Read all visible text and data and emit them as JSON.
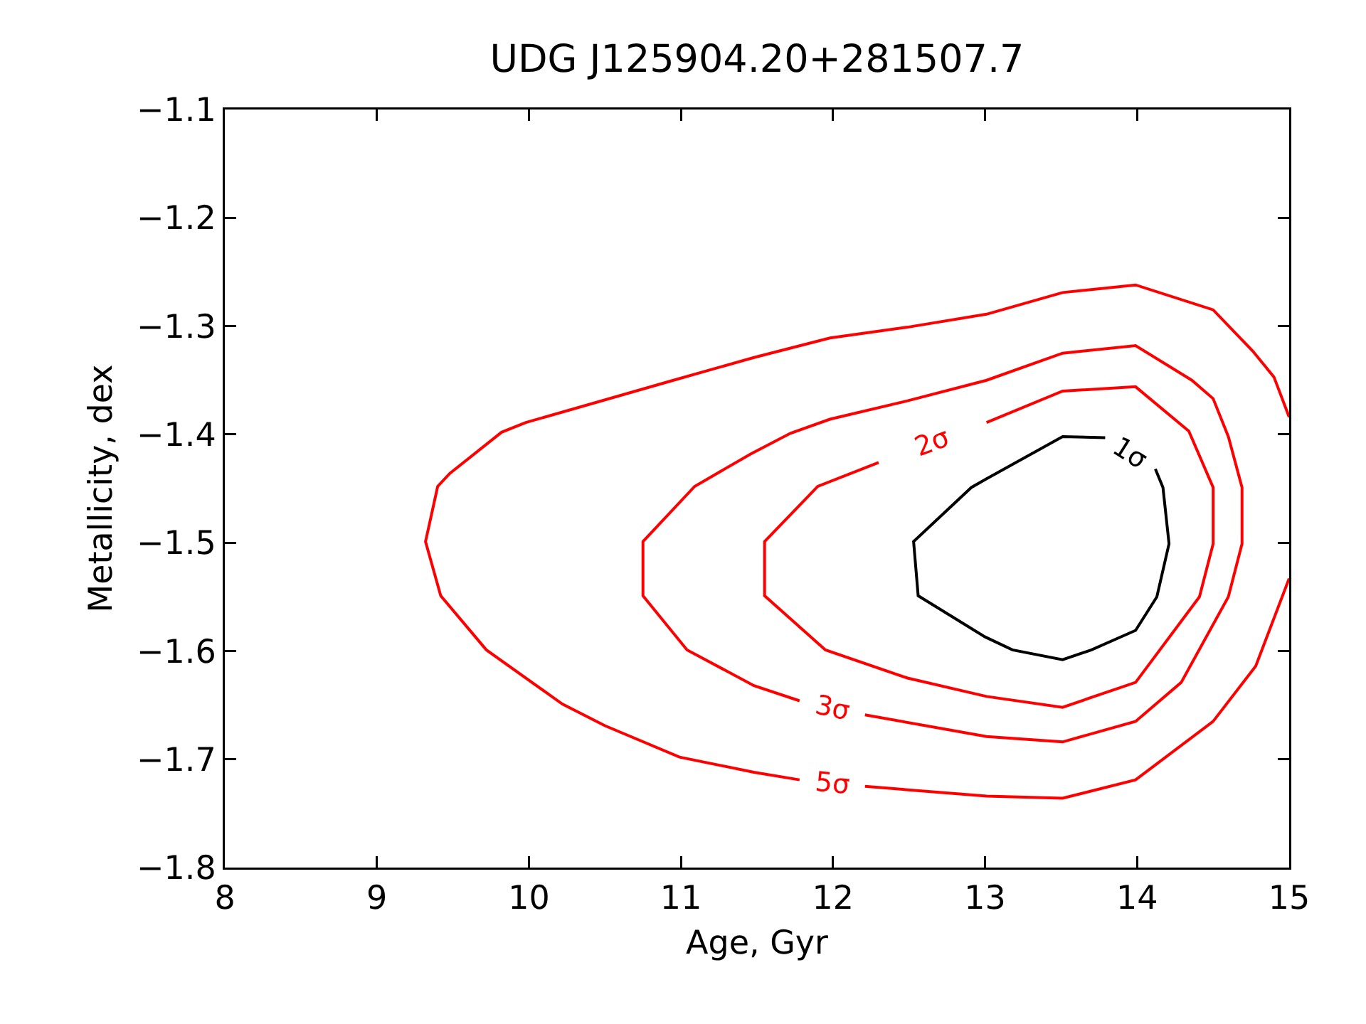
{
  "chart_data": {
    "type": "line",
    "title": "UDG J125904.20+281507.7",
    "xlabel": "Age, Gyr",
    "ylabel": "Metallicity, dex",
    "xlim": [
      8,
      15
    ],
    "xticks": [
      8,
      9,
      10,
      11,
      12,
      13,
      14,
      15
    ],
    "ylim": [
      -1.8,
      -1.1
    ],
    "yticks": [
      {
        "value": -1.8,
        "label": "−1.8"
      },
      {
        "value": -1.7,
        "label": "−1.7"
      },
      {
        "value": -1.6,
        "label": "−1.6"
      },
      {
        "value": -1.5,
        "label": "−1.5"
      },
      {
        "value": -1.4,
        "label": "−1.4"
      },
      {
        "value": -1.3,
        "label": "−1.3"
      },
      {
        "value": -1.2,
        "label": "−1.2"
      },
      {
        "value": -1.1,
        "label": "−1.1"
      }
    ],
    "grid": false,
    "legend": false,
    "marker": "none",
    "line_style": "solid",
    "series": [
      {
        "name": "1σ",
        "color": "#000000",
        "x": [
          14.12,
          14.17,
          14.21,
          14.13,
          13.99,
          13.7,
          13.51,
          13.18,
          13.0,
          12.56,
          12.53,
          12.91,
          13.01,
          13.51,
          13.79
        ],
        "values": [
          -1.432,
          -1.449,
          -1.501,
          -1.55,
          -1.581,
          -1.599,
          -1.608,
          -1.599,
          -1.587,
          -1.549,
          -1.499,
          -1.449,
          -1.441,
          -1.402,
          -1.403
        ]
      },
      {
        "name": "2σ",
        "color": "#ff0000",
        "x": [
          13.01,
          13.51,
          13.99,
          14.34,
          14.5,
          14.5,
          14.41,
          13.99,
          13.51,
          13.01,
          12.49,
          11.95,
          11.55,
          11.55,
          11.9,
          12.3
        ],
        "values": [
          -1.389,
          -1.36,
          -1.356,
          -1.397,
          -1.449,
          -1.501,
          -1.55,
          -1.629,
          -1.652,
          -1.642,
          -1.625,
          -1.599,
          -1.549,
          -1.499,
          -1.448,
          -1.426
        ]
      },
      {
        "name": "3σ",
        "color": "#ff0000",
        "x": [
          12.21,
          13.01,
          13.51,
          13.99,
          14.29,
          14.6,
          14.69,
          14.69,
          14.6,
          14.5,
          14.36,
          13.99,
          13.51,
          13.01,
          12.49,
          11.98,
          11.72,
          11.46,
          11.09,
          10.75,
          10.75,
          11.04,
          11.48,
          11.78
        ],
        "values": [
          -1.659,
          -1.679,
          -1.684,
          -1.665,
          -1.629,
          -1.55,
          -1.501,
          -1.449,
          -1.402,
          -1.367,
          -1.35,
          -1.318,
          -1.325,
          -1.35,
          -1.369,
          -1.386,
          -1.399,
          -1.418,
          -1.448,
          -1.499,
          -1.549,
          -1.599,
          -1.632,
          -1.646
        ]
      },
      {
        "name": "5σ",
        "color": "#ff0000",
        "x": [
          12.21,
          13.01,
          13.51,
          13.99,
          14.5,
          14.78,
          15.0,
          null,
          15.0,
          14.9,
          14.76,
          14.5,
          13.99,
          13.51,
          13.01,
          12.49,
          11.98,
          11.48,
          10.95,
          9.98,
          9.82,
          9.48,
          9.4,
          9.32,
          9.42,
          9.72,
          10.22,
          10.5,
          10.99,
          11.48,
          11.78
        ],
        "values": [
          -1.725,
          -1.734,
          -1.736,
          -1.719,
          -1.665,
          -1.614,
          -1.533,
          null,
          -1.384,
          -1.347,
          -1.323,
          -1.285,
          -1.262,
          -1.269,
          -1.289,
          -1.301,
          -1.311,
          -1.329,
          -1.35,
          -1.389,
          -1.398,
          -1.436,
          -1.448,
          -1.499,
          -1.549,
          -1.599,
          -1.649,
          -1.669,
          -1.698,
          -1.712,
          -1.719
        ]
      }
    ]
  }
}
